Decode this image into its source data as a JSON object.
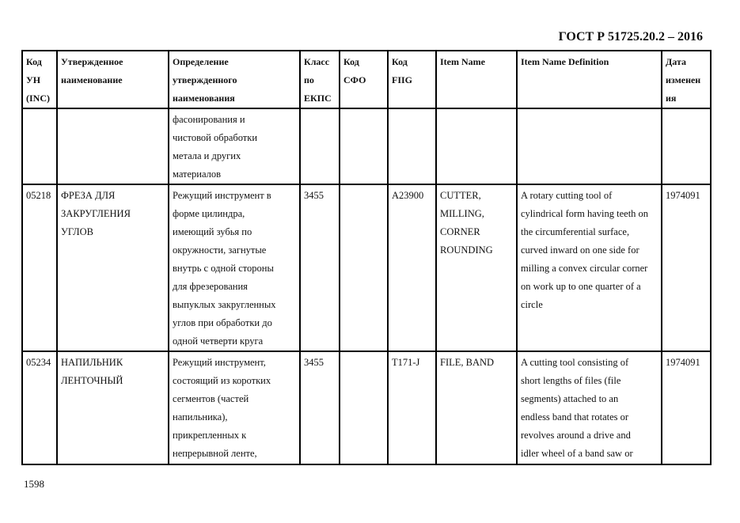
{
  "header": {
    "doc_code": "ГОСТ Р 51725.20.2 – 2016"
  },
  "table": {
    "columns": [
      [
        "Код",
        "УН",
        "(INC)"
      ],
      [
        "Утвержденное",
        "наименование"
      ],
      [
        "Определение",
        "утвержденного",
        "наименования"
      ],
      [
        "Класс",
        "по",
        "ЕКПС"
      ],
      [
        "Код",
        "СФО"
      ],
      [
        "Код",
        "FIIG"
      ],
      [
        "Item Name"
      ],
      [
        "Item Name Definition"
      ],
      [
        "Дата",
        "изменен",
        "ия"
      ]
    ],
    "rows": [
      [
        [],
        [],
        [
          "фасонирования и",
          "чистовой обработки",
          "метала и других",
          "материалов"
        ],
        [],
        [],
        [],
        [],
        [],
        []
      ],
      [
        [
          "05218"
        ],
        [
          "ФРЕЗА ДЛЯ",
          "ЗАКРУГЛЕНИЯ",
          "УГЛОВ"
        ],
        [
          "Режущий инструмент в",
          "форме цилиндра,",
          "имеющий зубья по",
          "окружности, загнутые",
          "внутрь с одной стороны",
          "для фрезерования",
          "выпуклых закругленных",
          "углов при обработки до",
          "одной  четверти круга"
        ],
        [
          "3455"
        ],
        [],
        [
          "A23900"
        ],
        [
          "CUTTER,",
          "MILLING,",
          "CORNER",
          "ROUNDING"
        ],
        [
          "A rotary cutting tool of",
          "cylindrical form having teeth on",
          "the circumferential surface,",
          "curved inward on one side for",
          "milling a convex circular corner",
          "on work up to one quarter of a",
          "circle"
        ],
        [
          "1974091"
        ]
      ],
      [
        [
          "05234"
        ],
        [
          "НАПИЛЬНИК",
          "ЛЕНТОЧНЫЙ"
        ],
        [
          "Режущий инструмент,",
          "состоящий из коротких",
          "сегментов (частей",
          "напильника),",
          "прикрепленных к",
          "непрерывной ленте,"
        ],
        [
          "3455"
        ],
        [],
        [
          "T171-J"
        ],
        [
          "FILE, BAND"
        ],
        [
          "A cutting tool consisting of",
          "short lengths of files (file",
          "segments) attached to an",
          "endless band that rotates or",
          "revolves around a drive and",
          "idler wheel of a band saw or"
        ],
        [
          "1974091"
        ]
      ]
    ]
  },
  "footer": {
    "page_number": "1598"
  }
}
